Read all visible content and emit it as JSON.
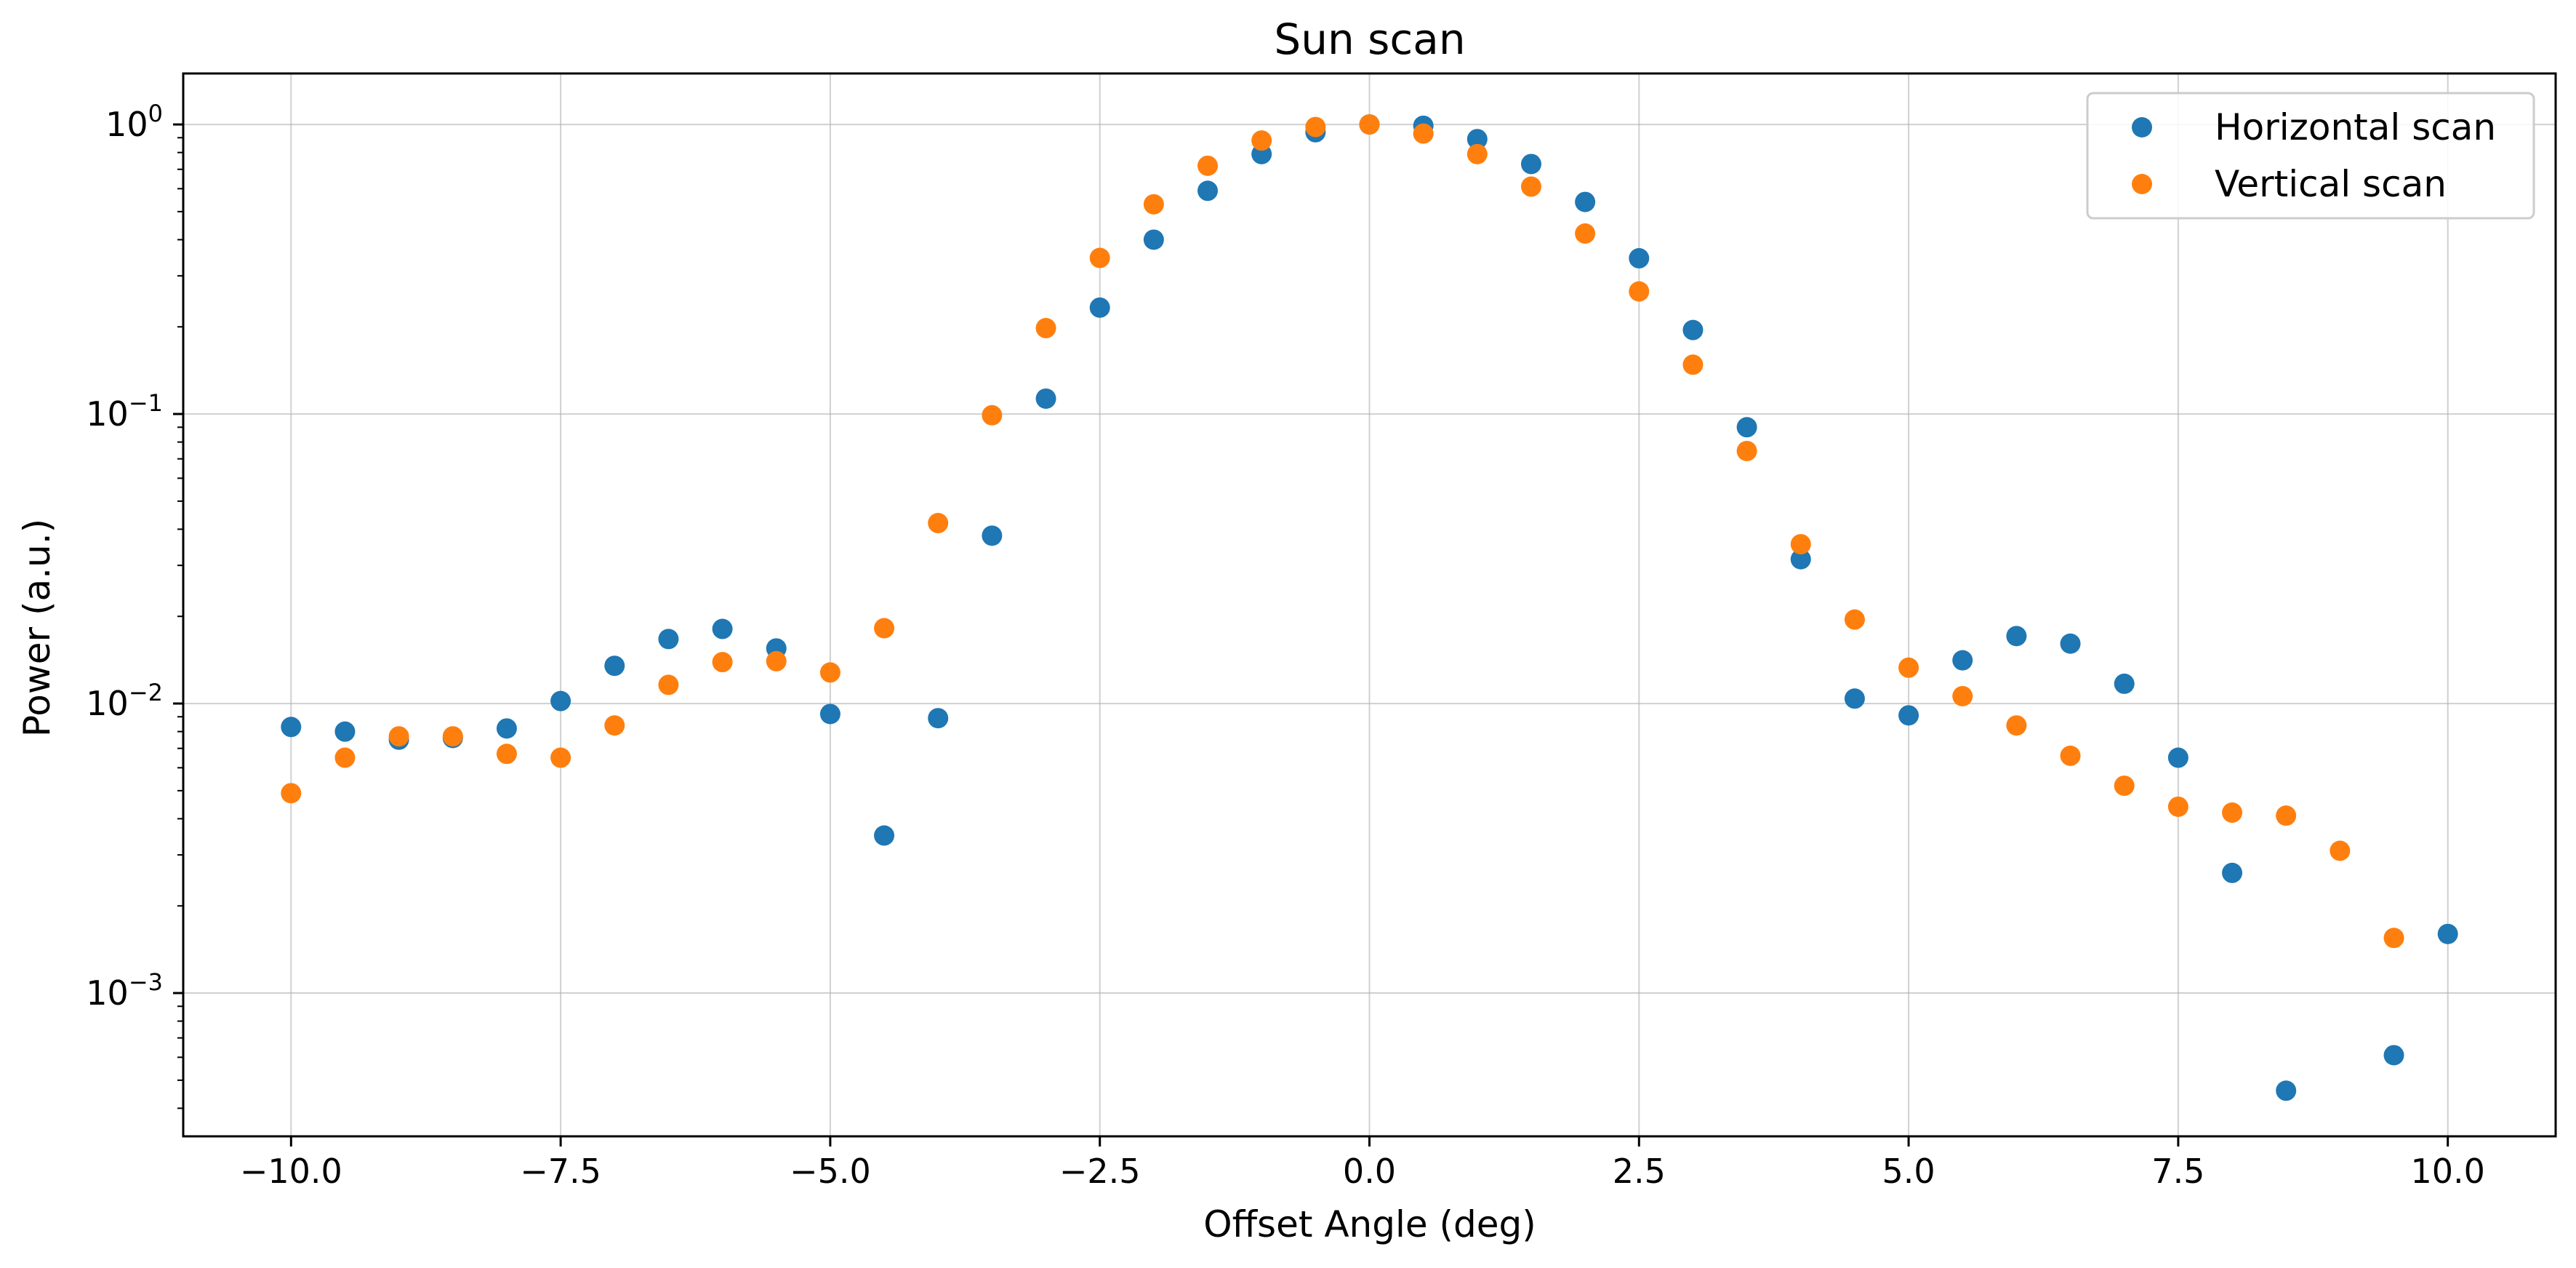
{
  "chart_data": {
    "type": "scatter",
    "title": "Sun scan",
    "xlabel": "Offset Angle (deg)",
    "ylabel": "Power (a.u.)",
    "xlim": [
      -11,
      11
    ],
    "ylim": [
      0.00032,
      1.5
    ],
    "yscale": "log",
    "grid": true,
    "legend_position": "top-right",
    "x_ticks": [
      -10.0,
      -7.5,
      -5.0,
      -2.5,
      0.0,
      2.5,
      5.0,
      7.5,
      10.0
    ],
    "x_tick_labels": [
      "−10.0",
      "−7.5",
      "−5.0",
      "−2.5",
      "0.0",
      "2.5",
      "5.0",
      "7.5",
      "10.0"
    ],
    "y_ticks": [
      {
        "value": 0.001,
        "base": "10",
        "exp": "−3"
      },
      {
        "value": 0.01,
        "base": "10",
        "exp": "−2"
      },
      {
        "value": 0.1,
        "base": "10",
        "exp": "−1"
      },
      {
        "value": 1,
        "base": "10",
        "exp": "0"
      }
    ],
    "series": [
      {
        "name": "Horizontal scan",
        "color": "#1f77b4",
        "x": [
          -10,
          -9.5,
          -9,
          -8.5,
          -8,
          -7.5,
          -7,
          -6.5,
          -6,
          -5.5,
          -5,
          -4.5,
          -4,
          -3.5,
          -3,
          -2.5,
          -2,
          -1.5,
          -1,
          -0.5,
          0,
          0.5,
          1,
          1.5,
          2,
          2.5,
          3,
          3.5,
          4,
          4.5,
          5,
          5.5,
          6,
          6.5,
          7,
          7.5,
          8,
          8.5,
          9.5,
          10
        ],
        "y": [
          0.0083,
          0.008,
          0.0075,
          0.0076,
          0.0082,
          0.0102,
          0.0135,
          0.0167,
          0.0181,
          0.0155,
          0.0092,
          0.0035,
          0.0089,
          0.038,
          0.113,
          0.233,
          0.4,
          0.59,
          0.79,
          0.94,
          1.0,
          0.99,
          0.89,
          0.73,
          0.54,
          0.345,
          0.195,
          0.09,
          0.0315,
          0.0104,
          0.0091,
          0.0141,
          0.0171,
          0.0161,
          0.0117,
          0.0065,
          0.0026,
          0.00046,
          0.00061,
          0.0016
        ]
      },
      {
        "name": "Vertical scan",
        "color": "#ff7f0e",
        "x": [
          -10,
          -9.5,
          -9,
          -8.5,
          -8,
          -7.5,
          -7,
          -6.5,
          -6,
          -5.5,
          -5,
          -4.5,
          -4,
          -3.5,
          -3,
          -2.5,
          -2,
          -1.5,
          -1,
          -0.5,
          0,
          0.5,
          1,
          1.5,
          2,
          2.5,
          3,
          3.5,
          4,
          4.5,
          5,
          5.5,
          6,
          6.5,
          7,
          7.5,
          8,
          8.5,
          9,
          9.5
        ],
        "y": [
          0.0049,
          0.0065,
          0.0077,
          0.0077,
          0.0067,
          0.0065,
          0.0084,
          0.0116,
          0.0139,
          0.014,
          0.0128,
          0.0182,
          0.042,
          0.099,
          0.198,
          0.346,
          0.53,
          0.72,
          0.88,
          0.98,
          1.0,
          0.93,
          0.79,
          0.61,
          0.42,
          0.265,
          0.148,
          0.0745,
          0.0355,
          0.0195,
          0.0133,
          0.0106,
          0.0084,
          0.0066,
          0.0052,
          0.0044,
          0.0042,
          0.0041,
          0.0031,
          0.00155
        ]
      }
    ]
  }
}
